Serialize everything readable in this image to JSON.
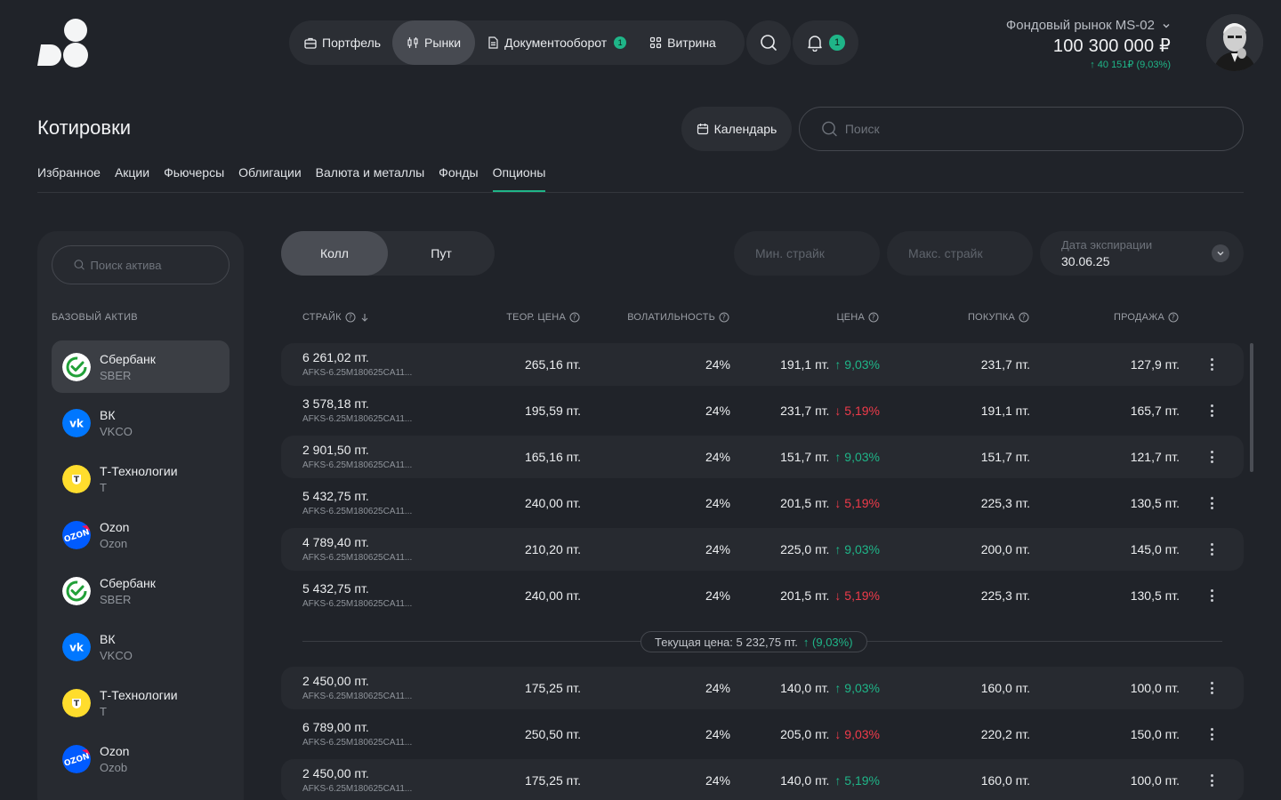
{
  "nav": {
    "items": [
      {
        "label": "Портфель",
        "icon": "briefcase-icon"
      },
      {
        "label": "Рынки",
        "icon": "candles-icon",
        "active": true
      },
      {
        "label": "Документооборот",
        "icon": "document-icon",
        "badge": "1"
      },
      {
        "label": "Витрина",
        "icon": "grid-icon"
      }
    ],
    "notifications_count": "1"
  },
  "account": {
    "name": "Фондовый рынок MS-02",
    "balance": "100 300 000 ₽",
    "change": "↑ 40 151₽ (9,03%)"
  },
  "page": {
    "title": "Котировки",
    "calendar_label": "Календарь",
    "search_placeholder": "Поиск"
  },
  "tabs": [
    "Избранное",
    "Акции",
    "Фьючерсы",
    "Облигации",
    "Валюта и металлы",
    "Фонды",
    "Опционы"
  ],
  "active_tab": "Опционы",
  "sidebar": {
    "search_placeholder": "Поиск актива",
    "label": "БАЗОВЫЙ АКТИВ",
    "assets": [
      {
        "name": "Сбербанк",
        "ticker": "SBER",
        "logo": "sber",
        "active": true
      },
      {
        "name": "ВК",
        "ticker": "VKCO",
        "logo": "vk"
      },
      {
        "name": "Т-Технологии",
        "ticker": "T",
        "logo": "t"
      },
      {
        "name": "Ozon",
        "ticker": "Ozon",
        "logo": "ozon"
      },
      {
        "name": "Сбербанк",
        "ticker": "SBER",
        "logo": "sber"
      },
      {
        "name": "ВК",
        "ticker": "VKCO",
        "logo": "vk"
      },
      {
        "name": "Т-Технологии",
        "ticker": "T",
        "logo": "t"
      },
      {
        "name": "Ozon",
        "ticker": "Ozob",
        "logo": "ozon"
      }
    ]
  },
  "controls": {
    "call_label": "Колл",
    "put_label": "Пут",
    "min_strike_placeholder": "Мин. страйк",
    "max_strike_placeholder": "Макс. страйк",
    "expiry_label": "Дата экспирации",
    "expiry_value": "30.06.25"
  },
  "table": {
    "headers": {
      "strike": "СТРАЙК",
      "theor": "ТЕОР. ЦЕНА",
      "vol": "ВОЛАТИЛЬНОСТЬ",
      "price": "ЦЕНА",
      "buy": "ПОКУПКА",
      "sell": "ПРОДАЖА"
    },
    "rows": [
      {
        "strike": "6 261,02 пт.",
        "code": "AFKS-6.25M180625CA11...",
        "theor": "265,16 пт.",
        "vol": "24%",
        "price": "191,1 пт.",
        "change": "↑ 9,03%",
        "dir": "up",
        "buy": "231,7 пт.",
        "sell": "127,9 пт."
      },
      {
        "strike": "3 578,18 пт.",
        "code": "AFKS-6.25M180625CA11...",
        "theor": "195,59 пт.",
        "vol": "24%",
        "price": "231,7 пт.",
        "change": "↓ 5,19%",
        "dir": "down",
        "buy": "191,1 пт.",
        "sell": "165,7 пт."
      },
      {
        "strike": "2 901,50 пт.",
        "code": "AFKS-6.25M180625CA11...",
        "theor": "165,16 пт.",
        "vol": "24%",
        "price": "151,7 пт.",
        "change": "↑ 9,03%",
        "dir": "up",
        "buy": "151,7 пт.",
        "sell": "121,7 пт."
      },
      {
        "strike": "5 432,75 пт.",
        "code": "AFKS-6.25M180625CA11...",
        "theor": "240,00 пт.",
        "vol": "24%",
        "price": "201,5 пт.",
        "change": "↓ 5,19%",
        "dir": "down",
        "buy": "225,3 пт.",
        "sell": "130,5 пт."
      },
      {
        "strike": "4 789,40 пт.",
        "code": "AFKS-6.25M180625CA11...",
        "theor": "210,20 пт.",
        "vol": "24%",
        "price": "225,0 пт.",
        "change": "↑ 9,03%",
        "dir": "up",
        "buy": "200,0 пт.",
        "sell": "145,0 пт."
      },
      {
        "strike": "5 432,75 пт.",
        "code": "AFKS-6.25M180625CA11...",
        "theor": "240,00 пт.",
        "vol": "24%",
        "price": "201,5 пт.",
        "change": "↓ 5,19%",
        "dir": "down",
        "buy": "225,3 пт.",
        "sell": "130,5 пт."
      }
    ],
    "current_price_label": "Текущая цена: 5 232,75 пт.",
    "current_price_change": "↑ (9,03%)",
    "rows_below": [
      {
        "strike": "2 450,00 пт.",
        "code": "AFKS-6.25M180625CA11...",
        "theor": "175,25 пт.",
        "vol": "24%",
        "price": "140,0 пт.",
        "change": "↑ 9,03%",
        "dir": "up",
        "buy": "160,0 пт.",
        "sell": "100,0 пт."
      },
      {
        "strike": "6 789,00 пт.",
        "code": "AFKS-6.25M180625CA11...",
        "theor": "250,50 пт.",
        "vol": "24%",
        "price": "205,0 пт.",
        "change": "↓ 9,03%",
        "dir": "down",
        "buy": "220,2 пт.",
        "sell": "150,0 пт."
      },
      {
        "strike": "2 450,00 пт.",
        "code": "AFKS-6.25M180625CA11...",
        "theor": "175,25 пт.",
        "vol": "24%",
        "price": "140,0 пт.",
        "change": "↑ 5,19%",
        "dir": "up",
        "buy": "160,0 пт.",
        "sell": "100,0 пт."
      }
    ]
  },
  "colors": {
    "up": "#1fb588",
    "down": "#ef3b4a",
    "accent": "#1fb588"
  }
}
